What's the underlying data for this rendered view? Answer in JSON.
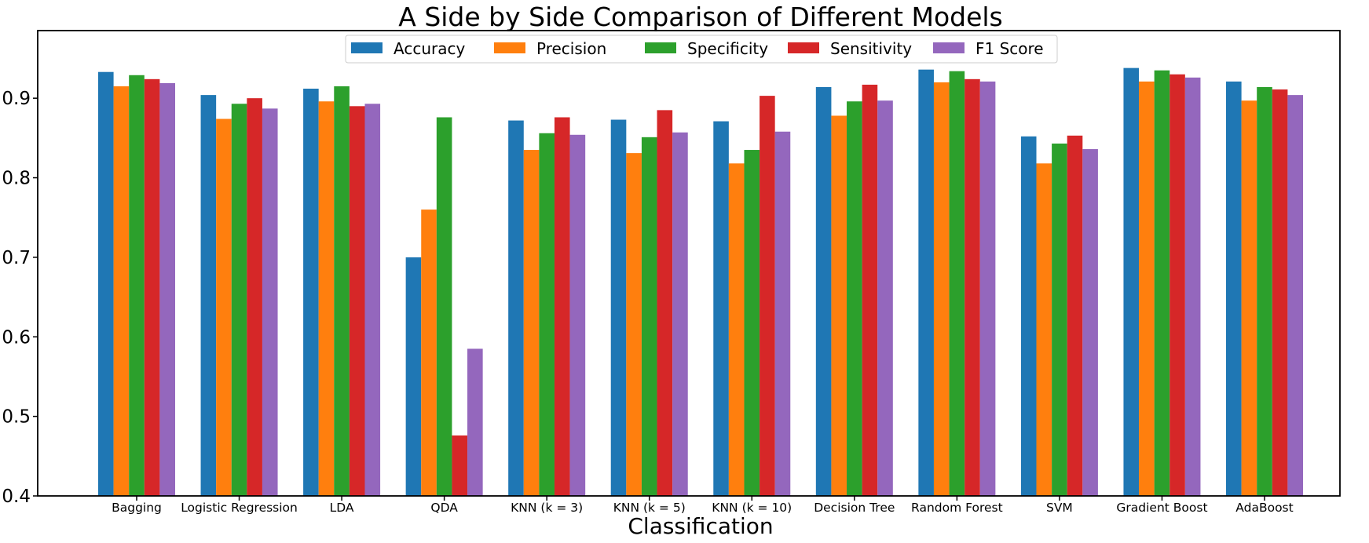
{
  "chart_data": {
    "type": "bar",
    "title": "A Side by Side Comparison of Different Models",
    "xlabel": "Classification",
    "ylabel": "",
    "ylim": [
      0.4,
      0.985
    ],
    "yticks": [
      "0.4",
      "0.5",
      "0.6",
      "0.7",
      "0.8",
      "0.9"
    ],
    "legend_position": "top-center",
    "categories": [
      "Bagging",
      "Logistic Regression",
      "LDA",
      "QDA",
      "KNN (k = 3)",
      "KNN (k = 5)",
      "KNN (k = 10)",
      "Decision Tree",
      "Random Forest",
      "SVM",
      "Gradient Boost",
      "AdaBoost"
    ],
    "series": [
      {
        "name": "Accuracy",
        "color": "#1f77b4",
        "values": [
          0.933,
          0.904,
          0.912,
          0.7,
          0.872,
          0.873,
          0.871,
          0.914,
          0.936,
          0.852,
          0.938,
          0.921
        ]
      },
      {
        "name": "Precision",
        "color": "#ff7f0e",
        "values": [
          0.915,
          0.874,
          0.896,
          0.76,
          0.835,
          0.831,
          0.818,
          0.878,
          0.92,
          0.818,
          0.921,
          0.897
        ]
      },
      {
        "name": "Specificity",
        "color": "#2ca02c",
        "values": [
          0.929,
          0.893,
          0.915,
          0.876,
          0.856,
          0.851,
          0.835,
          0.896,
          0.934,
          0.843,
          0.935,
          0.914
        ]
      },
      {
        "name": "Sensitivity",
        "color": "#d62728",
        "values": [
          0.924,
          0.9,
          0.89,
          0.476,
          0.876,
          0.885,
          0.903,
          0.917,
          0.924,
          0.853,
          0.93,
          0.911
        ]
      },
      {
        "name": "F1 Score",
        "color": "#9467bd",
        "values": [
          0.919,
          0.887,
          0.893,
          0.585,
          0.854,
          0.857,
          0.858,
          0.897,
          0.921,
          0.836,
          0.926,
          0.904
        ]
      }
    ]
  }
}
